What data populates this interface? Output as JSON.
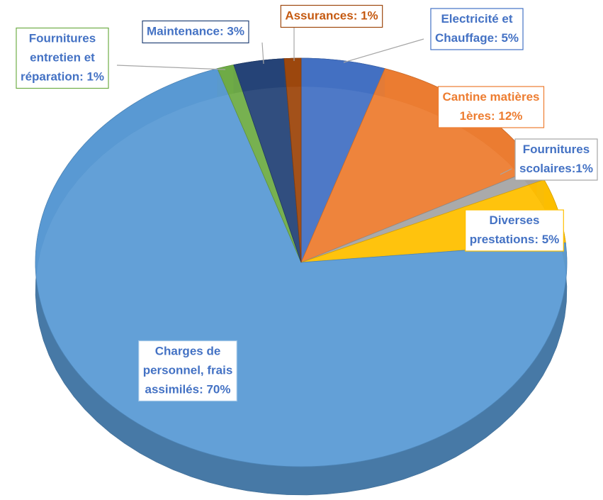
{
  "chart_data": {
    "type": "pie",
    "value_labels": [
      [
        "Electricité et",
        "Chauffage: 5%"
      ],
      [
        "Cantine matières",
        "1ères: 12%"
      ],
      [
        "Fournitures",
        "scolaires:1%"
      ],
      [
        "Diverses",
        "prestations: 5%"
      ],
      [
        "Charges de",
        "personnel, frais",
        "assimilés: 70%"
      ],
      [
        "Fournitures",
        "entretien et",
        "réparation: 1%"
      ],
      [
        "Maintenance: 3%"
      ],
      [
        "Assurances: 1%"
      ]
    ],
    "values": [
      5,
      12,
      1,
      5,
      70,
      1,
      3,
      1
    ],
    "colors": [
      "#4472c4",
      "#ed7d31",
      "#a5a5a5",
      "#ffc000",
      "#5b9bd5",
      "#70ad47",
      "#264478",
      "#9e480e"
    ]
  }
}
